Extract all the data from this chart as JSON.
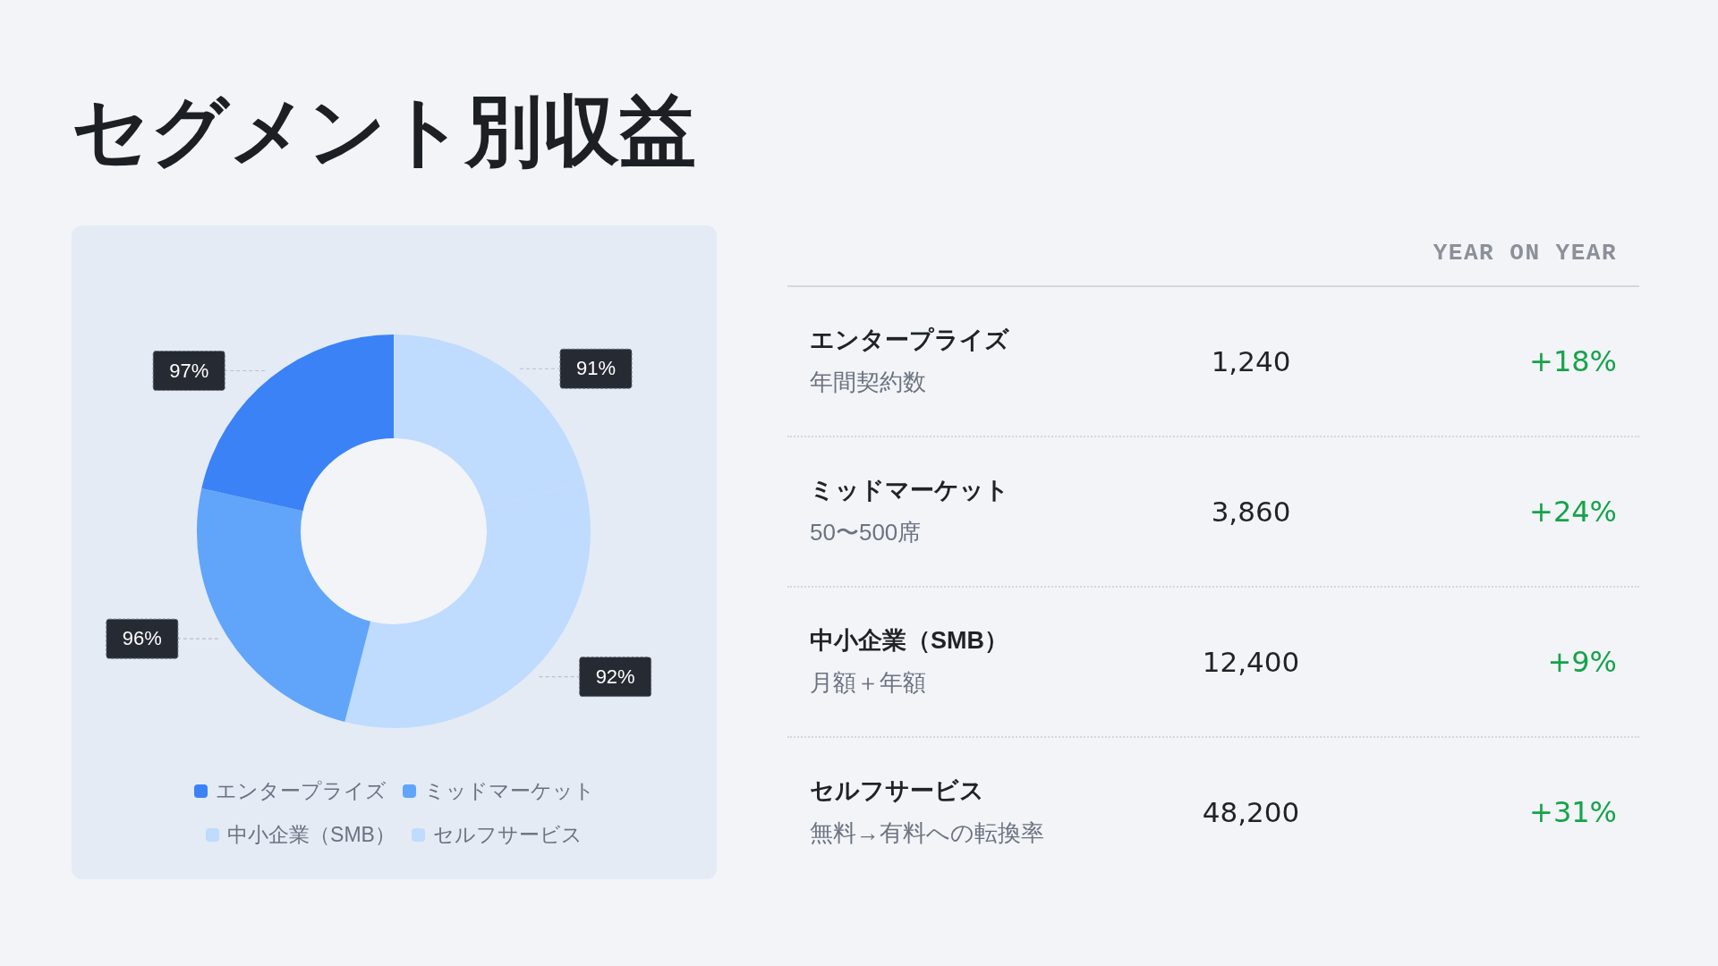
{
  "chart_data": [
    {
      "type": "donut",
      "title": "セグメント別収益",
      "categories": [
        "エンタープライズ",
        "ミッドマーケット",
        "中小企業（SMB）",
        "セルフサービス"
      ],
      "values": [
        21.5,
        24.5,
        33,
        21
      ],
      "colors": [
        "#3b82f6",
        "#60a5fa",
        "#bfdbfe",
        "#bfdbfe"
      ],
      "annotations": [
        {
          "text": "97%",
          "x": "エンタープライズ"
        },
        {
          "text": "96%",
          "x": "ミッドマーケット"
        },
        {
          "text": "92%",
          "x": "中小企業（SMB）"
        },
        {
          "text": "91%",
          "x": "セルフサービス"
        }
      ],
      "legend": "bottom"
    },
    {
      "type": "other",
      "annotations": [
        "YEAR ON YEAR",
        "エンタープライズ",
        "年間契約数",
        "1,240",
        "+18%",
        "ミッドマーケット",
        "50〜500席",
        "3,860",
        "+24%",
        "中小企業（SMB）",
        "月額＋年額",
        "12,400",
        "+9%",
        "セルフサービス",
        "無料→有料への転換率",
        "48,200",
        "+31%"
      ]
    }
  ]
}
